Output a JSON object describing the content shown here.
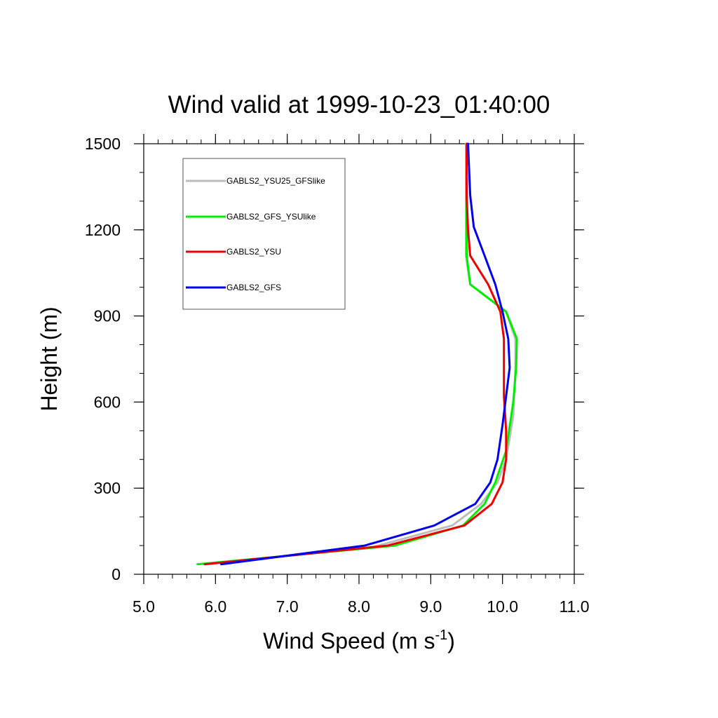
{
  "chart_data": {
    "type": "line",
    "title": "Wind valid at 1999-10-23_01:40:00",
    "xlabel": {
      "main": "Wind Speed (m s",
      "sup": "-1",
      "close": ")"
    },
    "ylabel": "Height (m)",
    "xlim": [
      5.0,
      11.0
    ],
    "ylim": [
      0,
      1500
    ],
    "x_ticks": [
      5.0,
      6.0,
      7.0,
      8.0,
      9.0,
      10.0,
      11.0
    ],
    "x_tick_labels": [
      "5.0",
      "6.0",
      "7.0",
      "8.0",
      "9.0",
      "10.0",
      "11.0"
    ],
    "y_ticks": [
      0,
      300,
      600,
      900,
      1200,
      1500
    ],
    "y_tick_labels": [
      "0",
      "300",
      "600",
      "900",
      "1200",
      "1500"
    ],
    "grid": false,
    "legend_position": "top-left",
    "series": [
      {
        "name": "GABLS2_YSU25_GFSlike",
        "color": "#bdbdbd",
        "points": [
          [
            5.88,
            35
          ],
          [
            8.2,
            95
          ],
          [
            9.3,
            170
          ],
          [
            9.7,
            245
          ],
          [
            9.93,
            320
          ],
          [
            10.05,
            400
          ],
          [
            10.15,
            550
          ],
          [
            10.18,
            720
          ],
          [
            10.18,
            820
          ],
          [
            10.05,
            915
          ],
          [
            9.55,
            1010
          ],
          [
            9.49,
            1110
          ],
          [
            9.49,
            1200
          ],
          [
            9.49,
            1320
          ],
          [
            9.49,
            1500
          ]
        ]
      },
      {
        "name": "GABLS2_GFS_YSUlike",
        "color": "#00ee00",
        "points": [
          [
            5.75,
            35
          ],
          [
            8.5,
            100
          ],
          [
            9.45,
            170
          ],
          [
            9.75,
            245
          ],
          [
            9.9,
            320
          ],
          [
            10.05,
            430
          ],
          [
            10.15,
            600
          ],
          [
            10.19,
            720
          ],
          [
            10.2,
            820
          ],
          [
            10.05,
            915
          ],
          [
            9.55,
            1010
          ],
          [
            9.5,
            1110
          ],
          [
            9.5,
            1200
          ],
          [
            9.5,
            1320
          ],
          [
            9.5,
            1500
          ]
        ]
      },
      {
        "name": "GABLS2_YSU",
        "color": "#ee0000",
        "points": [
          [
            5.85,
            35
          ],
          [
            8.4,
            100
          ],
          [
            9.47,
            170
          ],
          [
            9.85,
            245
          ],
          [
            10.0,
            320
          ],
          [
            10.05,
            400
          ],
          [
            10.05,
            500
          ],
          [
            10.02,
            620
          ],
          [
            10.02,
            820
          ],
          [
            9.97,
            915
          ],
          [
            9.8,
            1010
          ],
          [
            9.55,
            1110
          ],
          [
            9.52,
            1200
          ],
          [
            9.5,
            1320
          ],
          [
            9.5,
            1500
          ]
        ]
      },
      {
        "name": "GABLS2_GFS",
        "color": "#0000ee",
        "points": [
          [
            6.08,
            35
          ],
          [
            8.08,
            100
          ],
          [
            9.05,
            170
          ],
          [
            9.62,
            245
          ],
          [
            9.83,
            320
          ],
          [
            9.93,
            400
          ],
          [
            10.0,
            520
          ],
          [
            10.05,
            620
          ],
          [
            10.1,
            720
          ],
          [
            10.08,
            820
          ],
          [
            10.0,
            915
          ],
          [
            9.9,
            1010
          ],
          [
            9.75,
            1110
          ],
          [
            9.6,
            1210
          ],
          [
            9.55,
            1320
          ],
          [
            9.52,
            1500
          ]
        ]
      }
    ]
  }
}
